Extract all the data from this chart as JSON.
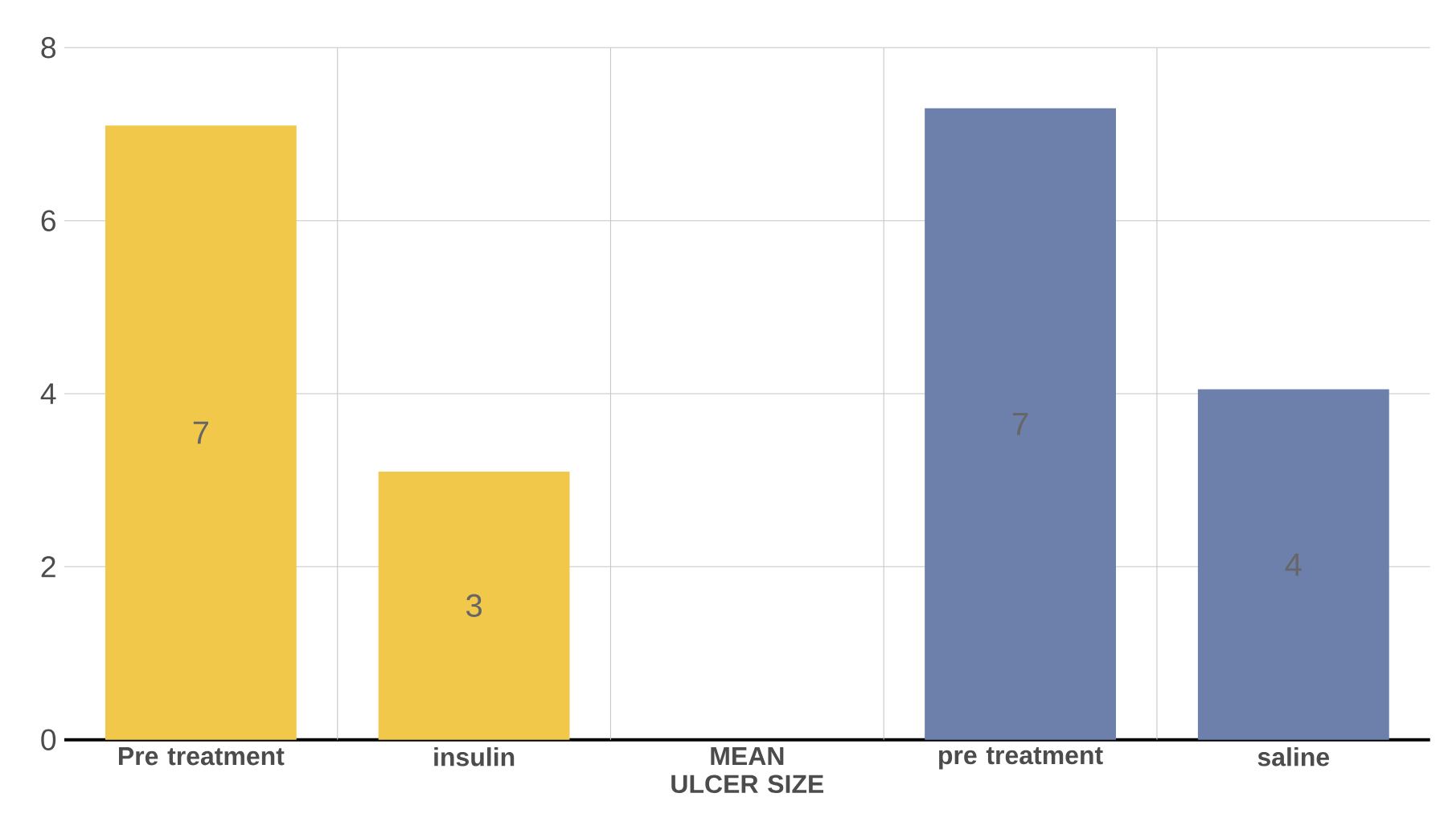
{
  "chart_data": {
    "type": "bar",
    "categories": [
      "Pre treatment",
      "insulin",
      "MEAN ULCER SIZE",
      "pre treatment",
      "saline"
    ],
    "values": [
      7.1,
      3.1,
      null,
      7.3,
      4.05
    ],
    "colors": [
      "#f2c84b",
      "#f2c84b",
      null,
      "#6d80ab",
      "#6d80ab"
    ],
    "value_labels": [
      "7",
      "3",
      null,
      "7",
      "4"
    ],
    "ylim": [
      0,
      8
    ],
    "yticks": [
      0,
      2,
      4,
      6,
      8
    ],
    "grid": "y"
  }
}
